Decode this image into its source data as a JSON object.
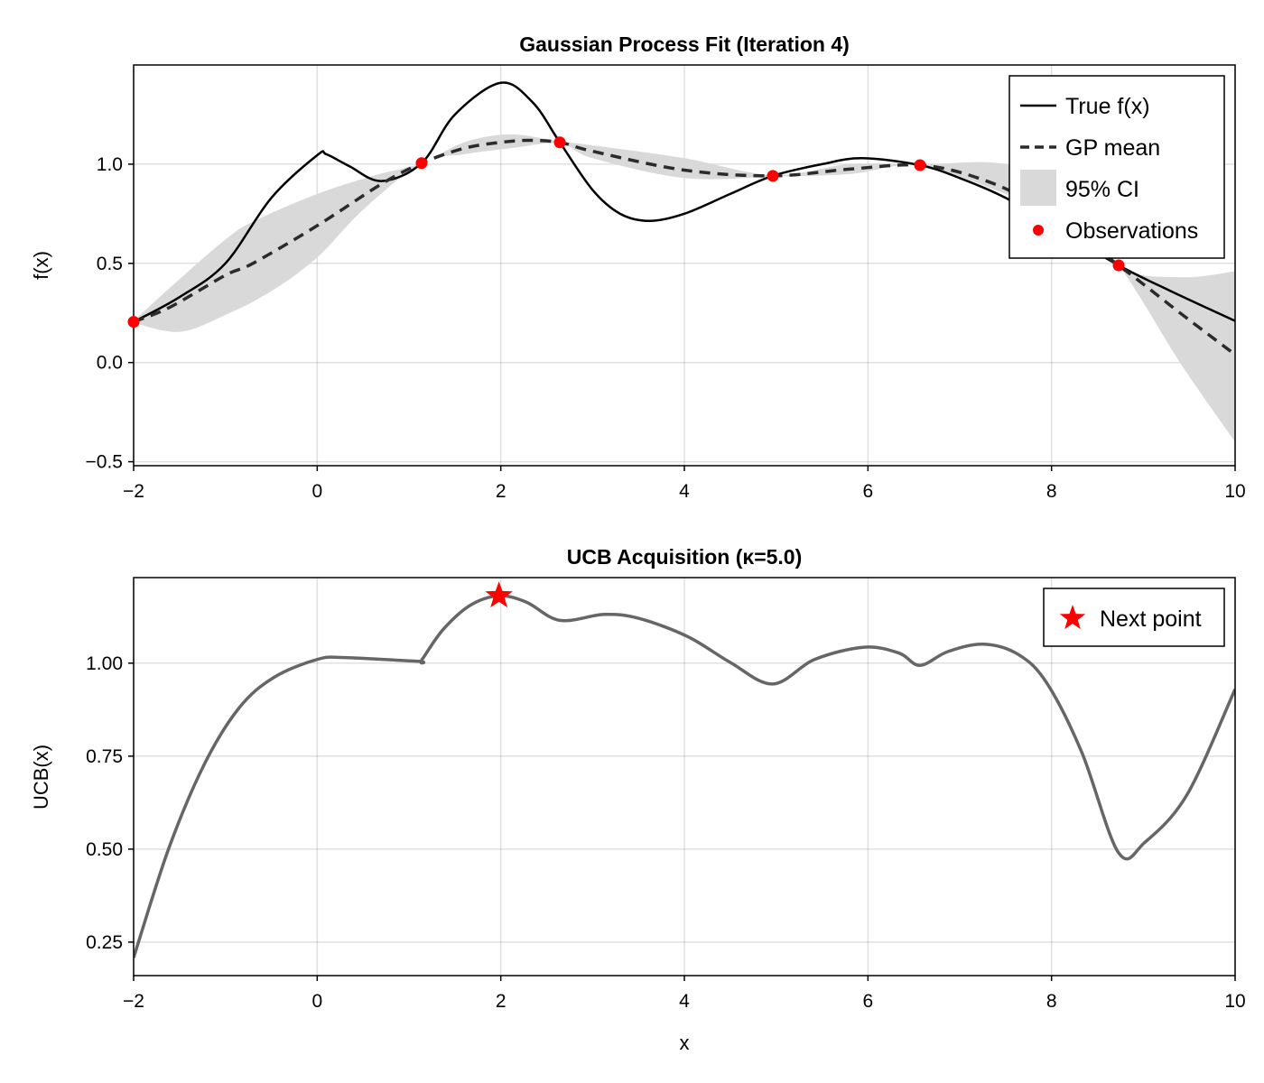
{
  "chart_data": [
    {
      "type": "line",
      "title": "Gaussian Process Fit (Iteration 4)",
      "xlabel": "",
      "ylabel": "f(x)",
      "xlim": [
        -2,
        10
      ],
      "ylim": [
        -0.52,
        1.5
      ],
      "xticks": [
        "−2",
        "0",
        "2",
        "4",
        "6",
        "8",
        "10"
      ],
      "xtick_values": [
        -2,
        0,
        2,
        4,
        6,
        8,
        10
      ],
      "yticks": [
        "−0.5",
        "0.0",
        "0.5",
        "1.0"
      ],
      "ytick_values": [
        -0.5,
        0,
        0.5,
        1.0
      ],
      "grid": true,
      "legend_position": "top-right",
      "legend": [
        "True f(x)",
        "GP mean",
        "95% CI",
        "Observations"
      ],
      "colors": {
        "true": "#000000",
        "mean": "#2b2b2b",
        "ci": "#d9d9d9",
        "obs": "#ff0000"
      },
      "series": [
        {
          "name": "True f(x)",
          "style": "solid",
          "points": [
            [
              -2,
              0.205
            ],
            [
              -1.5,
              0.33
            ],
            [
              -1,
              0.5
            ],
            [
              -0.5,
              0.83
            ],
            [
              0,
              1.045
            ],
            [
              0.1,
              1.05
            ],
            [
              0.35,
              0.99
            ],
            [
              0.7,
              0.915
            ],
            [
              1.137,
              1.005
            ],
            [
              1.5,
              1.25
            ],
            [
              2.0,
              1.41
            ],
            [
              2.35,
              1.31
            ],
            [
              2.643,
              1.11
            ],
            [
              3.0,
              0.87
            ],
            [
              3.3,
              0.75
            ],
            [
              3.62,
              0.714
            ],
            [
              4.0,
              0.75
            ],
            [
              4.5,
              0.85
            ],
            [
              4.964,
              0.941
            ],
            [
              5.5,
              1.0
            ],
            [
              5.94,
              1.03
            ],
            [
              6.567,
              0.995
            ],
            [
              7.0,
              0.93
            ],
            [
              7.5,
              0.83
            ],
            [
              8.0,
              0.69
            ],
            [
              8.731,
              0.49
            ],
            [
              9.3,
              0.36
            ],
            [
              10,
              0.21
            ]
          ]
        },
        {
          "name": "GP mean",
          "style": "dashed",
          "points": [
            [
              -2,
              0.205
            ],
            [
              -1.6,
              0.28
            ],
            [
              -1,
              0.44
            ],
            [
              -0.7,
              0.5
            ],
            [
              0,
              0.69
            ],
            [
              0.7,
              0.9
            ],
            [
              1.137,
              1.005
            ],
            [
              1.6,
              1.08
            ],
            [
              2.0,
              1.11
            ],
            [
              2.3,
              1.12
            ],
            [
              2.643,
              1.11
            ],
            [
              3.0,
              1.065
            ],
            [
              4.0,
              0.97
            ],
            [
              4.964,
              0.941
            ],
            [
              5.8,
              0.975
            ],
            [
              6.567,
              0.995
            ],
            [
              7.2,
              0.93
            ],
            [
              7.8,
              0.8
            ],
            [
              8.731,
              0.49
            ],
            [
              9.4,
              0.25
            ],
            [
              10,
              0.04
            ]
          ]
        },
        {
          "name": "95% CI",
          "style": "band",
          "upper": [
            [
              -2,
              0.21
            ],
            [
              -1.5,
              0.42
            ],
            [
              -1,
              0.62
            ],
            [
              -0.7,
              0.71
            ],
            [
              0,
              0.85
            ],
            [
              0.6,
              0.94
            ],
            [
              1.137,
              1.005
            ],
            [
              1.6,
              1.11
            ],
            [
              2.1,
              1.15
            ],
            [
              2.643,
              1.115
            ],
            [
              3.0,
              1.095
            ],
            [
              4.0,
              1.03
            ],
            [
              4.964,
              0.945
            ],
            [
              5.8,
              1.0
            ],
            [
              6.567,
              0.998
            ],
            [
              7.5,
              1.0
            ],
            [
              8.2,
              0.85
            ],
            [
              8.731,
              0.49
            ],
            [
              9.4,
              0.43
            ],
            [
              10,
              0.46
            ]
          ],
          "lower": [
            [
              -2,
              0.2
            ],
            [
              -1.5,
              0.155
            ],
            [
              -1,
              0.24
            ],
            [
              -0.5,
              0.36
            ],
            [
              0,
              0.53
            ],
            [
              0.5,
              0.77
            ],
            [
              1.137,
              1.005
            ],
            [
              1.6,
              1.05
            ],
            [
              2.1,
              1.08
            ],
            [
              2.643,
              1.105
            ],
            [
              3.0,
              1.03
            ],
            [
              4.0,
              0.93
            ],
            [
              4.964,
              0.937
            ],
            [
              5.8,
              0.95
            ],
            [
              6.567,
              0.992
            ],
            [
              7.5,
              0.85
            ],
            [
              8.2,
              0.72
            ],
            [
              8.731,
              0.49
            ],
            [
              9.4,
              0.0
            ],
            [
              10,
              -0.4
            ]
          ]
        },
        {
          "name": "Observations",
          "style": "scatter",
          "points": [
            [
              -2,
              0.205
            ],
            [
              1.137,
              1.005
            ],
            [
              2.643,
              1.11
            ],
            [
              4.964,
              0.941
            ],
            [
              6.567,
              0.995
            ],
            [
              8.731,
              0.49
            ]
          ]
        }
      ]
    },
    {
      "type": "line",
      "title": "UCB Acquisition (κ=5.0)",
      "xlabel": "x",
      "ylabel": "UCB(x)",
      "xlim": [
        -2,
        10
      ],
      "ylim": [
        0.16,
        1.23
      ],
      "xticks": [
        "−2",
        "0",
        "2",
        "4",
        "6",
        "8",
        "10"
      ],
      "xtick_values": [
        -2,
        0,
        2,
        4,
        6,
        8,
        10
      ],
      "yticks": [
        "0.25",
        "0.50",
        "0.75",
        "1.00"
      ],
      "ytick_values": [
        0.25,
        0.5,
        0.75,
        1.0
      ],
      "grid": true,
      "legend_position": "top-right",
      "legend": [
        "Next point"
      ],
      "colors": {
        "ucb": "#666666",
        "next": "#ff0000"
      },
      "series": [
        {
          "name": "UCB",
          "style": "solid",
          "points": [
            [
              -2,
              0.208
            ],
            [
              -1.62,
              0.5
            ],
            [
              -1.23,
              0.728
            ],
            [
              -0.85,
              0.88
            ],
            [
              -0.47,
              0.962
            ],
            [
              0,
              1.01
            ],
            [
              0.3,
              1.015
            ],
            [
              1.1,
              1.005
            ],
            [
              1.137,
              1.008
            ],
            [
              1.37,
              1.09
            ],
            [
              1.67,
              1.156
            ],
            [
              1.98,
              1.181
            ],
            [
              2.28,
              1.164
            ],
            [
              2.643,
              1.115
            ],
            [
              3.13,
              1.131
            ],
            [
              3.51,
              1.12
            ],
            [
              4.04,
              1.071
            ],
            [
              4.5,
              1.002
            ],
            [
              4.964,
              0.944
            ],
            [
              5.42,
              1.01
            ],
            [
              5.96,
              1.043
            ],
            [
              6.34,
              1.027
            ],
            [
              6.567,
              0.994
            ],
            [
              6.87,
              1.031
            ],
            [
              7.26,
              1.051
            ],
            [
              7.64,
              1.023
            ],
            [
              7.95,
              0.946
            ],
            [
              8.33,
              0.76
            ],
            [
              8.731,
              0.49
            ],
            [
              9.02,
              0.519
            ],
            [
              9.48,
              0.648
            ],
            [
              10,
              0.93
            ]
          ]
        },
        {
          "name": "Next point",
          "style": "star",
          "points": [
            [
              1.98,
              1.181
            ]
          ]
        }
      ]
    }
  ]
}
